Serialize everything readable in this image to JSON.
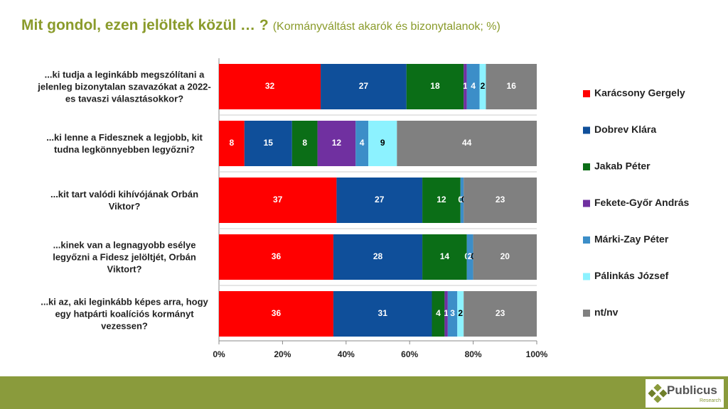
{
  "chart_data": {
    "type": "stacked-barh",
    "title": "Mit gondol, ezen jelöltek közül … ?",
    "subtitle": "(Kormányváltást akarók és bizonytalanok; %)",
    "categories": [
      "...ki tudja a leginkább megszólítani a jelenleg bizonytalan szavazókat a 2022-es tavaszi választásokkor?",
      "...ki lenne a Fidesznek a legjobb, kit tudna legkönnyebben legyőzni?",
      "...kit tart valódi kihívójának Orbán Viktor?",
      "...kinek van a legnagyobb esélye legyőzni a Fidesz jelöltjét, Orbán Viktort?",
      "...ki az, aki leginkább képes arra, hogy egy hatpárti koalíciós kormányt vezessen?"
    ],
    "series": [
      {
        "name": "Karácsony Gergely",
        "color": "#ff0000",
        "values": [
          32,
          8,
          37,
          36,
          36
        ]
      },
      {
        "name": "Dobrev Klára",
        "color": "#0f4f9a",
        "values": [
          27,
          15,
          27,
          28,
          31
        ]
      },
      {
        "name": "Jakab Péter",
        "color": "#0b6e17",
        "values": [
          18,
          8,
          12,
          14,
          4
        ]
      },
      {
        "name": "Fekete-Győr András",
        "color": "#7030a0",
        "values": [
          1,
          12,
          0,
          0,
          1
        ]
      },
      {
        "name": "Márki-Zay Péter",
        "color": "#3c8ec8",
        "values": [
          4,
          4,
          1,
          2,
          3
        ]
      },
      {
        "name": "Pálinkás József",
        "color": "#8cf2ff",
        "values": [
          2,
          9,
          0,
          0,
          2
        ]
      },
      {
        "name": "nt/nv",
        "color": "#808080",
        "values": [
          16,
          44,
          23,
          20,
          23
        ]
      }
    ],
    "xlim": [
      0,
      100
    ],
    "xticks": [
      {
        "value": 0,
        "label": "0%"
      },
      {
        "value": 20,
        "label": "20%"
      },
      {
        "value": 40,
        "label": "40%"
      },
      {
        "value": 60,
        "label": "60%"
      },
      {
        "value": 80,
        "label": "80%"
      },
      {
        "value": 100,
        "label": "100%"
      }
    ],
    "legend": "right"
  },
  "logo": {
    "name": "Publicus",
    "subtitle": "Research"
  }
}
